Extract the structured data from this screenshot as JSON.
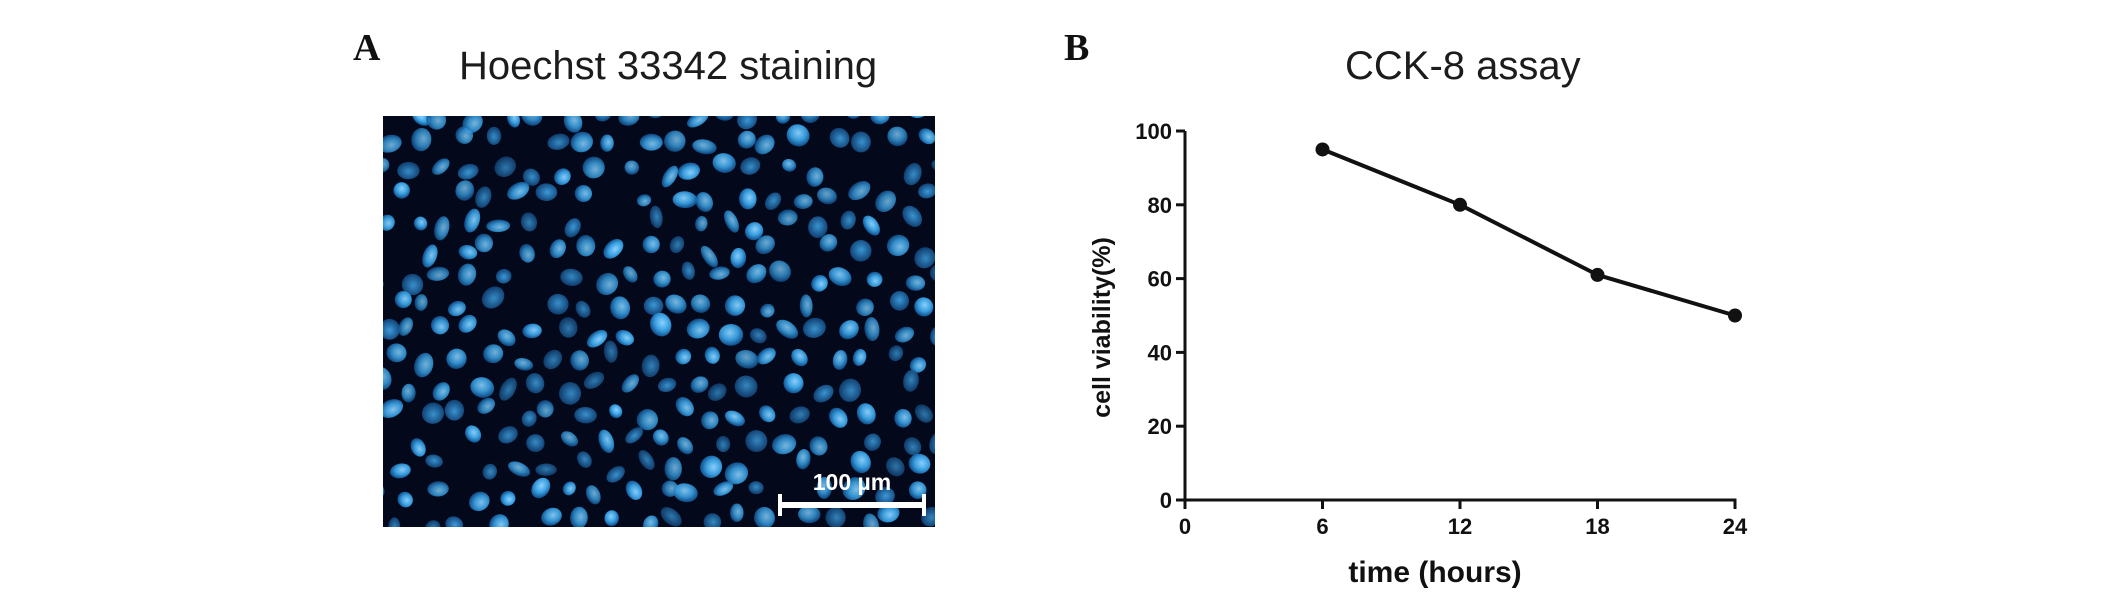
{
  "panels": {
    "a": {
      "label": "A",
      "title": "Hoechst 33342 staining",
      "scale_bar_label": "100 µm",
      "colors": {
        "background": "#03081a",
        "nucleus_bright": "#4fb4ee",
        "nucleus_dim": "#1f6fb4",
        "scale_bar": "#ffffff"
      }
    },
    "b": {
      "label": "B",
      "title": "CCK-8 assay"
    }
  },
  "chart_data": {
    "type": "line",
    "title": "CCK-8 assay",
    "xlabel": "time  (hours)",
    "ylabel": "cell viability(%)",
    "xlim": [
      0,
      24
    ],
    "ylim": [
      0,
      100
    ],
    "xticks": [
      0,
      6,
      12,
      18,
      24
    ],
    "yticks": [
      0,
      20,
      40,
      60,
      80,
      100
    ],
    "grid": false,
    "x": [
      6,
      12,
      18,
      24
    ],
    "series": [
      {
        "values": [
          95,
          80,
          61,
          50
        ],
        "color": "#111111",
        "marker": "circle"
      }
    ]
  }
}
